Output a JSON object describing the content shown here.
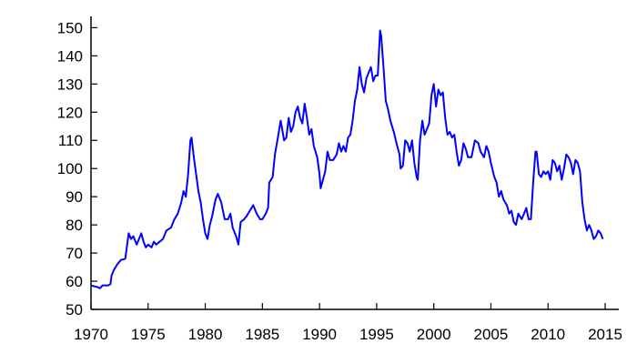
{
  "chart_data": {
    "type": "line",
    "title": "",
    "xlabel": "",
    "ylabel": "",
    "xlim": [
      1970,
      2015
    ],
    "ylim": [
      50,
      154
    ],
    "x_ticks": [
      1970,
      1975,
      1980,
      1985,
      1990,
      1995,
      2000,
      2005,
      2010,
      2015
    ],
    "y_ticks": [
      50,
      60,
      70,
      80,
      90,
      100,
      110,
      120,
      130,
      140,
      150
    ],
    "x_tick_labels": [
      "1970",
      "1975",
      "1980",
      "1985",
      "1990",
      "1995",
      "2000",
      "2005",
      "2010",
      "2015"
    ],
    "y_tick_labels": [
      "50",
      "60",
      "70",
      "80",
      "90",
      "100",
      "110",
      "120",
      "130",
      "140",
      "150"
    ],
    "grid": false,
    "series": [
      {
        "color": "#0000ff",
        "points": [
          [
            1970.0,
            58.5
          ],
          [
            1970.5,
            58.0
          ],
          [
            1970.8,
            57.5
          ],
          [
            1971.0,
            58.5
          ],
          [
            1971.5,
            58.5
          ],
          [
            1971.7,
            59.0
          ],
          [
            1971.8,
            62.0
          ],
          [
            1972.0,
            64.0
          ],
          [
            1972.3,
            66.0
          ],
          [
            1972.6,
            67.5
          ],
          [
            1973.0,
            68.0
          ],
          [
            1973.1,
            71.0
          ],
          [
            1973.3,
            77.0
          ],
          [
            1973.5,
            75.0
          ],
          [
            1973.7,
            76.0
          ],
          [
            1974.0,
            73.0
          ],
          [
            1974.2,
            75.0
          ],
          [
            1974.4,
            77.0
          ],
          [
            1974.6,
            74.0
          ],
          [
            1974.8,
            72.0
          ],
          [
            1975.0,
            73.0
          ],
          [
            1975.3,
            72.0
          ],
          [
            1975.5,
            74.0
          ],
          [
            1975.7,
            73.0
          ],
          [
            1976.0,
            74.0
          ],
          [
            1976.3,
            75.0
          ],
          [
            1976.6,
            78.0
          ],
          [
            1977.0,
            79.0
          ],
          [
            1977.3,
            82.0
          ],
          [
            1977.6,
            84.0
          ],
          [
            1977.9,
            88.0
          ],
          [
            1978.1,
            92.0
          ],
          [
            1978.3,
            90.0
          ],
          [
            1978.5,
            98.0
          ],
          [
            1978.7,
            110.0
          ],
          [
            1978.8,
            111.0
          ],
          [
            1979.0,
            104.0
          ],
          [
            1979.2,
            98.0
          ],
          [
            1979.4,
            92.0
          ],
          [
            1979.6,
            88.0
          ],
          [
            1979.8,
            82.0
          ],
          [
            1980.0,
            77.0
          ],
          [
            1980.2,
            75.0
          ],
          [
            1980.4,
            80.0
          ],
          [
            1980.6,
            83.0
          ],
          [
            1980.9,
            89.0
          ],
          [
            1981.1,
            91.0
          ],
          [
            1981.4,
            88.0
          ],
          [
            1981.7,
            82.0
          ],
          [
            1982.0,
            82.0
          ],
          [
            1982.2,
            84.0
          ],
          [
            1982.4,
            79.0
          ],
          [
            1982.7,
            76.0
          ],
          [
            1982.9,
            73.0
          ],
          [
            1983.1,
            81.0
          ],
          [
            1983.4,
            82.0
          ],
          [
            1983.6,
            83.0
          ],
          [
            1983.9,
            85.0
          ],
          [
            1984.2,
            87.0
          ],
          [
            1984.5,
            84.0
          ],
          [
            1984.8,
            82.0
          ],
          [
            1985.0,
            82.0
          ],
          [
            1985.3,
            84.0
          ],
          [
            1985.5,
            86.0
          ],
          [
            1985.6,
            95.0
          ],
          [
            1985.9,
            97.0
          ],
          [
            1986.1,
            105.0
          ],
          [
            1986.4,
            112.0
          ],
          [
            1986.6,
            117.0
          ],
          [
            1986.9,
            110.0
          ],
          [
            1987.1,
            111.0
          ],
          [
            1987.3,
            118.0
          ],
          [
            1987.5,
            113.0
          ],
          [
            1987.7,
            115.0
          ],
          [
            1987.9,
            120.0
          ],
          [
            1988.1,
            122.0
          ],
          [
            1988.3,
            118.0
          ],
          [
            1988.5,
            116.0
          ],
          [
            1988.7,
            123.0
          ],
          [
            1988.9,
            118.0
          ],
          [
            1989.1,
            112.0
          ],
          [
            1989.3,
            114.0
          ],
          [
            1989.5,
            108.0
          ],
          [
            1989.8,
            104.0
          ],
          [
            1990.0,
            98.0
          ],
          [
            1990.1,
            93.0
          ],
          [
            1990.3,
            96.0
          ],
          [
            1990.5,
            99.0
          ],
          [
            1990.7,
            106.0
          ],
          [
            1990.9,
            103.0
          ],
          [
            1991.2,
            103.0
          ],
          [
            1991.5,
            105.0
          ],
          [
            1991.7,
            109.0
          ],
          [
            1991.9,
            106.0
          ],
          [
            1992.1,
            108.0
          ],
          [
            1992.3,
            106.0
          ],
          [
            1992.5,
            111.0
          ],
          [
            1992.7,
            112.0
          ],
          [
            1992.9,
            117.0
          ],
          [
            1993.1,
            124.0
          ],
          [
            1993.3,
            128.0
          ],
          [
            1993.5,
            136.0
          ],
          [
            1993.7,
            130.0
          ],
          [
            1993.9,
            127.0
          ],
          [
            1994.1,
            132.0
          ],
          [
            1994.3,
            134.0
          ],
          [
            1994.5,
            136.0
          ],
          [
            1994.7,
            131.0
          ],
          [
            1994.9,
            133.0
          ],
          [
            1995.1,
            133.0
          ],
          [
            1995.3,
            149.0
          ],
          [
            1995.4,
            147.0
          ],
          [
            1995.6,
            136.0
          ],
          [
            1995.8,
            124.0
          ],
          [
            1996.0,
            121.0
          ],
          [
            1996.2,
            117.0
          ],
          [
            1996.5,
            113.0
          ],
          [
            1996.8,
            108.0
          ],
          [
            1997.0,
            105.0
          ],
          [
            1997.1,
            100.0
          ],
          [
            1997.3,
            101.0
          ],
          [
            1997.5,
            110.0
          ],
          [
            1997.7,
            109.0
          ],
          [
            1997.9,
            106.0
          ],
          [
            1998.1,
            110.0
          ],
          [
            1998.3,
            102.0
          ],
          [
            1998.5,
            97.0
          ],
          [
            1998.6,
            96.0
          ],
          [
            1998.8,
            110.0
          ],
          [
            1999.0,
            117.0
          ],
          [
            1999.2,
            112.0
          ],
          [
            1999.4,
            114.0
          ],
          [
            1999.6,
            116.0
          ],
          [
            1999.8,
            126.0
          ],
          [
            2000.0,
            130.0
          ],
          [
            2000.2,
            122.0
          ],
          [
            2000.4,
            128.0
          ],
          [
            2000.6,
            126.0
          ],
          [
            2000.8,
            127.0
          ],
          [
            2001.0,
            118.0
          ],
          [
            2001.2,
            112.0
          ],
          [
            2001.4,
            113.0
          ],
          [
            2001.6,
            111.0
          ],
          [
            2001.8,
            112.0
          ],
          [
            2002.0,
            106.0
          ],
          [
            2002.2,
            101.0
          ],
          [
            2002.4,
            103.0
          ],
          [
            2002.6,
            109.0
          ],
          [
            2002.8,
            107.0
          ],
          [
            2003.0,
            104.0
          ],
          [
            2003.3,
            104.0
          ],
          [
            2003.6,
            110.0
          ],
          [
            2003.9,
            109.0
          ],
          [
            2004.1,
            106.0
          ],
          [
            2004.4,
            104.0
          ],
          [
            2004.6,
            108.0
          ],
          [
            2004.8,
            106.0
          ],
          [
            2005.0,
            102.0
          ],
          [
            2005.3,
            97.0
          ],
          [
            2005.5,
            95.0
          ],
          [
            2005.7,
            90.0
          ],
          [
            2005.9,
            92.0
          ],
          [
            2006.1,
            89.0
          ],
          [
            2006.4,
            87.0
          ],
          [
            2006.6,
            84.0
          ],
          [
            2006.8,
            85.0
          ],
          [
            2007.0,
            81.0
          ],
          [
            2007.2,
            80.0
          ],
          [
            2007.4,
            84.0
          ],
          [
            2007.7,
            82.0
          ],
          [
            2007.9,
            84.0
          ],
          [
            2008.1,
            86.0
          ],
          [
            2008.3,
            82.0
          ],
          [
            2008.5,
            82.0
          ],
          [
            2008.7,
            95.0
          ],
          [
            2008.9,
            106.0
          ],
          [
            2009.0,
            106.0
          ],
          [
            2009.2,
            98.0
          ],
          [
            2009.4,
            97.0
          ],
          [
            2009.6,
            99.0
          ],
          [
            2009.8,
            98.0
          ],
          [
            2010.0,
            99.0
          ],
          [
            2010.2,
            96.0
          ],
          [
            2010.4,
            103.0
          ],
          [
            2010.6,
            102.0
          ],
          [
            2010.8,
            99.0
          ],
          [
            2011.0,
            101.0
          ],
          [
            2011.2,
            96.0
          ],
          [
            2011.4,
            100.0
          ],
          [
            2011.6,
            105.0
          ],
          [
            2011.8,
            104.0
          ],
          [
            2012.0,
            102.0
          ],
          [
            2012.2,
            98.0
          ],
          [
            2012.4,
            103.0
          ],
          [
            2012.6,
            102.0
          ],
          [
            2012.8,
            99.0
          ],
          [
            2013.0,
            88.0
          ],
          [
            2013.2,
            82.0
          ],
          [
            2013.4,
            78.0
          ],
          [
            2013.6,
            80.0
          ],
          [
            2013.8,
            78.0
          ],
          [
            2014.0,
            75.0
          ],
          [
            2014.2,
            76.0
          ],
          [
            2014.4,
            78.0
          ],
          [
            2014.6,
            77.0
          ],
          [
            2014.8,
            75.0
          ]
        ]
      }
    ]
  },
  "colors": {
    "axis": "#000000",
    "line": "#0000ff",
    "background": "#ffffff"
  }
}
